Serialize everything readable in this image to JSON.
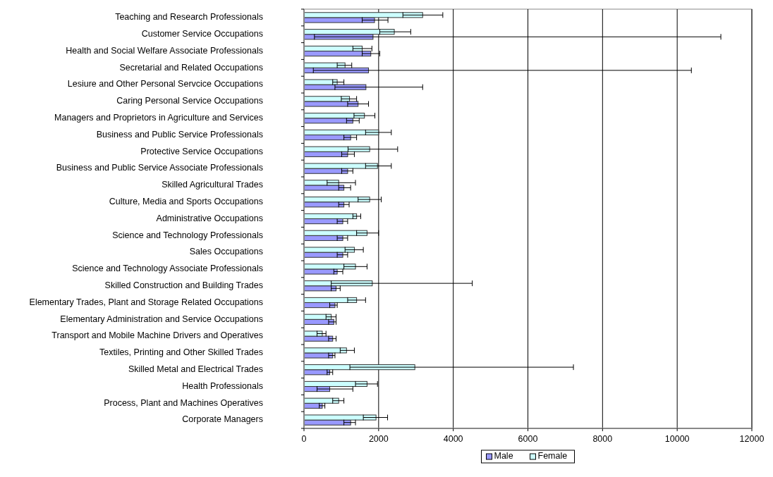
{
  "chart_data": {
    "type": "bar",
    "orientation": "horizontal",
    "categories": [
      "Teaching and Research Professionals",
      "Customer Service Occupations",
      "Health and Social Welfare Associate Professionals",
      "Secretarial and Related Occupations",
      "Lesiure and Other Personal Servcice Occupations",
      "Caring Personal Service Occupations",
      "Managers and Proprietors in Agriculture and Services",
      "Business and Public Service Professionals",
      "Protective Service Occupations",
      "Business and Public Service Associate Professionals",
      "Skilled Agricultural Trades",
      "Culture, Media and Sports Occupations",
      "Administrative Occupations",
      "Science and Technology Professionals",
      "Sales Occupations",
      "Science and Technology Associate Professionals",
      "Skilled Construction and Building Trades",
      "Elementary Trades, Plant and Storage Related Occupations",
      "Elementary Administration and Service Occupations",
      "Transport and Mobile Machine Drivers and Operatives",
      "Textiles, Printing and Other Skilled Trades",
      "Skilled Metal and Electrical Trades",
      "Health Professionals",
      "Process, Plant and Machines Operatives",
      "Corporate Managers"
    ],
    "series": [
      {
        "name": "Male",
        "color": "#9999ff",
        "values": [
          1890,
          1850,
          1790,
          1730,
          1660,
          1450,
          1310,
          1250,
          1170,
          1170,
          1070,
          1070,
          1040,
          1040,
          1040,
          890,
          860,
          830,
          800,
          770,
          770,
          690,
          690,
          490,
          1250
        ],
        "errors": [
          [
            1560,
            2250
          ],
          [
            280,
            11170
          ],
          [
            1560,
            2030
          ],
          [
            250,
            10380
          ],
          [
            830,
            3180
          ],
          [
            1170,
            1730
          ],
          [
            1140,
            1480
          ],
          [
            1070,
            1410
          ],
          [
            1010,
            1350
          ],
          [
            1010,
            1310
          ],
          [
            930,
            1250
          ],
          [
            930,
            1210
          ],
          [
            890,
            1170
          ],
          [
            890,
            1170
          ],
          [
            890,
            1170
          ],
          [
            800,
            1040
          ],
          [
            730,
            970
          ],
          [
            690,
            890
          ],
          [
            660,
            860
          ],
          [
            660,
            860
          ],
          [
            660,
            830
          ],
          [
            620,
            770
          ],
          [
            350,
            1310
          ],
          [
            410,
            560
          ],
          [
            1070,
            1380
          ]
        ]
      },
      {
        "name": "Female",
        "color": "#ccffff",
        "values": [
          3180,
          2420,
          1560,
          1100,
          890,
          1220,
          1620,
          2000,
          1760,
          1970,
          930,
          1760,
          1410,
          1690,
          1350,
          1380,
          1830,
          1410,
          730,
          490,
          1140,
          2970,
          1690,
          930,
          1930
        ],
        "errors": [
          [
            2650,
            3720
          ],
          [
            2030,
            2860
          ],
          [
            1310,
            1820
          ],
          [
            890,
            1280
          ],
          [
            770,
            1070
          ],
          [
            1000,
            1410
          ],
          [
            1340,
            1900
          ],
          [
            1650,
            2340
          ],
          [
            1180,
            2510
          ],
          [
            1650,
            2340
          ],
          [
            620,
            1380
          ],
          [
            1450,
            2070
          ],
          [
            1310,
            1520
          ],
          [
            1410,
            2000
          ],
          [
            1100,
            1590
          ],
          [
            1070,
            1690
          ],
          [
            730,
            4510
          ],
          [
            1170,
            1650
          ],
          [
            590,
            860
          ],
          [
            350,
            590
          ],
          [
            970,
            1350
          ],
          [
            1230,
            7220
          ],
          [
            1380,
            1970
          ],
          [
            770,
            1070
          ],
          [
            1590,
            2240
          ]
        ]
      }
    ],
    "xlim": [
      0,
      12000
    ],
    "xticks": [
      0,
      2000,
      4000,
      6000,
      8000,
      10000,
      12000
    ],
    "grid": "x",
    "legend": "bottom"
  }
}
